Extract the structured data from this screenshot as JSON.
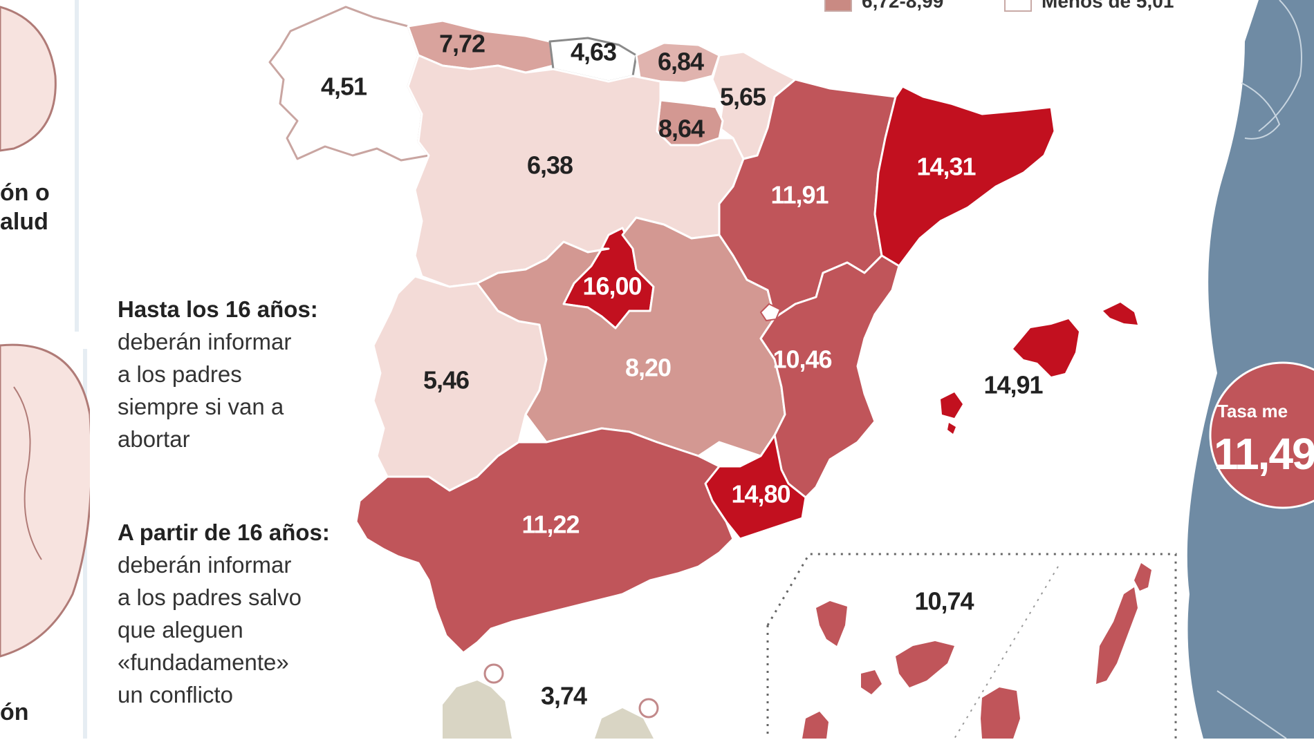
{
  "legend": {
    "items": [
      {
        "label": "6,72-8,99",
        "color": "#c98a83"
      },
      {
        "label": "Menos de 5,01",
        "color": "#ffffff"
      }
    ]
  },
  "left_text": {
    "crop_top_line1": "ón o",
    "crop_top_line2": "alud",
    "crop_bottom": "ón"
  },
  "notes": [
    {
      "heading": "Hasta los 16 años:",
      "lines": [
        "deberán informar",
        "a los padres",
        "siempre si van a",
        "abortar"
      ]
    },
    {
      "heading": "A partir de 16 años:",
      "lines": [
        "deberán informar",
        "a los padres salvo",
        "que aleguen",
        "«fundadamente»",
        "un conflicto"
      ]
    }
  ],
  "regions": [
    {
      "name": "Galicia",
      "value": "4,51",
      "color": "#ffffff"
    },
    {
      "name": "Asturias",
      "value": "7,72",
      "color": "#d9a39d"
    },
    {
      "name": "Cantabria",
      "value": "4,63",
      "color": "#ffffff"
    },
    {
      "name": "País Vasco",
      "value": "6,84",
      "color": "#e0b3ae"
    },
    {
      "name": "Navarra",
      "value": "5,65",
      "color": "#f3dbd7"
    },
    {
      "name": "La Rioja",
      "value": "8,64",
      "color": "#d39892"
    },
    {
      "name": "Castilla y León",
      "value": "6,38",
      "color": "#f3dbd7"
    },
    {
      "name": "Aragón",
      "value": "11,91",
      "color": "#c0555a"
    },
    {
      "name": "Cataluña",
      "value": "14,31",
      "color": "#c2101f"
    },
    {
      "name": "Madrid",
      "value": "16,00",
      "color": "#c2101f"
    },
    {
      "name": "Extremadura",
      "value": "5,46",
      "color": "#f3dbd7"
    },
    {
      "name": "Castilla-La Mancha",
      "value": "8,20",
      "color": "#d39892"
    },
    {
      "name": "Comunidad Valenciana",
      "value": "10,46",
      "color": "#c0555a"
    },
    {
      "name": "Baleares",
      "value": "14,91",
      "color": "#c2101f"
    },
    {
      "name": "Murcia",
      "value": "14,80",
      "color": "#c2101f"
    },
    {
      "name": "Andalucía",
      "value": "11,22",
      "color": "#c0555a"
    },
    {
      "name": "Canarias",
      "value": "10,74",
      "color": "#c0555a"
    },
    {
      "name": "Ceuta y Melilla",
      "value": "3,74",
      "color": "#d9d5c4"
    }
  ],
  "national_rate": {
    "label": "Tasa me",
    "value": "11,49"
  },
  "colors": {
    "figure": "#6f8ba4",
    "figure_dark": "#4f6d86",
    "badge": "#c0555a"
  }
}
